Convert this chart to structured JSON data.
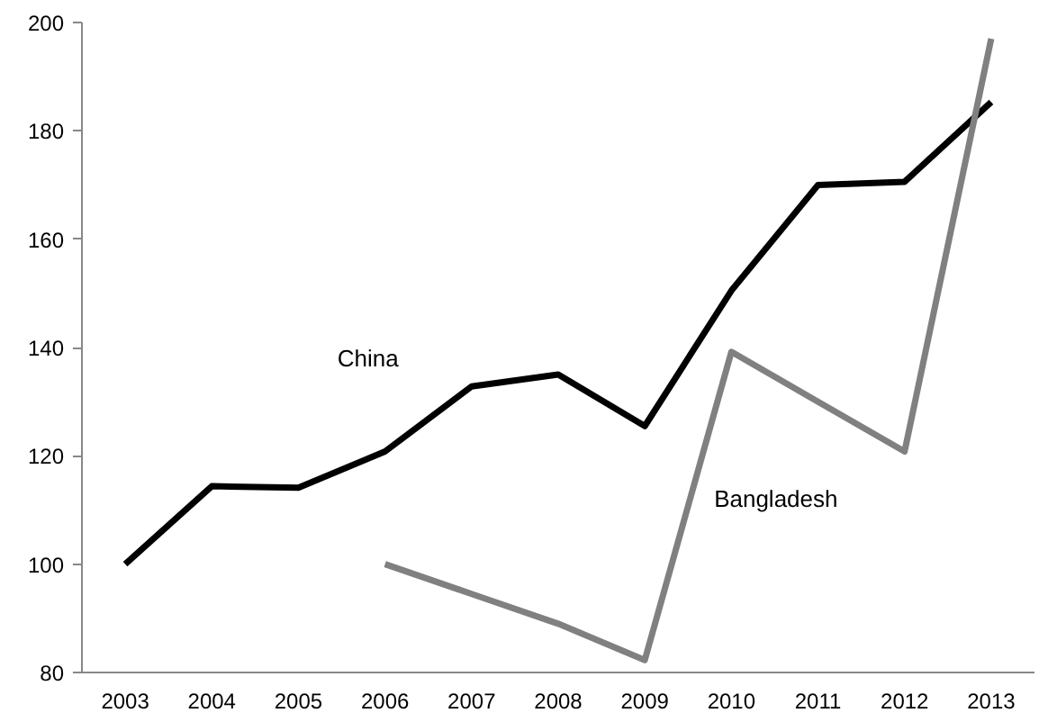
{
  "chart_data": {
    "type": "line",
    "categories": [
      "2003",
      "2004",
      "2005",
      "2006",
      "2007",
      "2008",
      "2009",
      "2010",
      "2011",
      "2012",
      "2013"
    ],
    "series": [
      {
        "name": "China",
        "color": "#000000",
        "values": [
          100,
          114.4,
          114.1,
          120.8,
          132.8,
          135,
          125.5,
          150.5,
          170,
          170.6,
          185.3
        ]
      },
      {
        "name": "Bangladesh",
        "color": "#808080",
        "values": [
          null,
          null,
          null,
          100,
          94.5,
          89,
          82.3,
          139.2,
          130,
          120.8,
          197
        ]
      }
    ],
    "ylim": [
      80,
      200
    ],
    "yticks": [
      80,
      100,
      120,
      140,
      160,
      180,
      200
    ],
    "grid": false,
    "marker": "none",
    "line_style": "solid"
  }
}
